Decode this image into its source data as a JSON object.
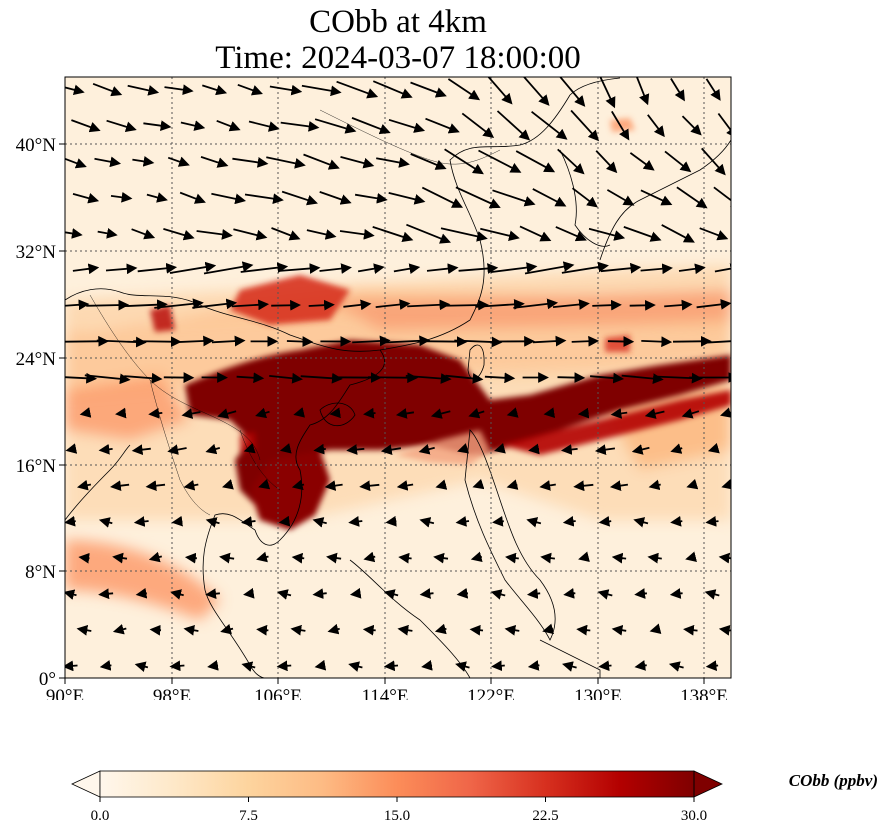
{
  "title": {
    "line1": "CObb at 4km",
    "line2": "Time: 2024-03-07 18:00:00"
  },
  "map": {
    "lon_range": [
      90,
      140
    ],
    "lat_range": [
      0,
      45
    ],
    "x_ticks": [
      "90°E",
      "98°E",
      "106°E",
      "114°E",
      "122°E",
      "130°E",
      "138°E"
    ],
    "y_ticks": [
      "0°",
      "8°N",
      "16°N",
      "24°N",
      "32°N",
      "40°N"
    ],
    "gridlines": true,
    "field_variable": "CObb",
    "wind_vectors": true
  },
  "colorbar": {
    "label": "CObb (ppbv)",
    "ticks": [
      "0.0",
      "7.5",
      "15.0",
      "22.5",
      "30.0"
    ],
    "range": [
      0,
      30
    ],
    "extend": "both",
    "colormap": [
      "#fff7ec",
      "#fee8c8",
      "#fdd49e",
      "#fdbb84",
      "#fc8d59",
      "#ef6548",
      "#d7301f",
      "#b30000",
      "#7f0000"
    ]
  }
}
